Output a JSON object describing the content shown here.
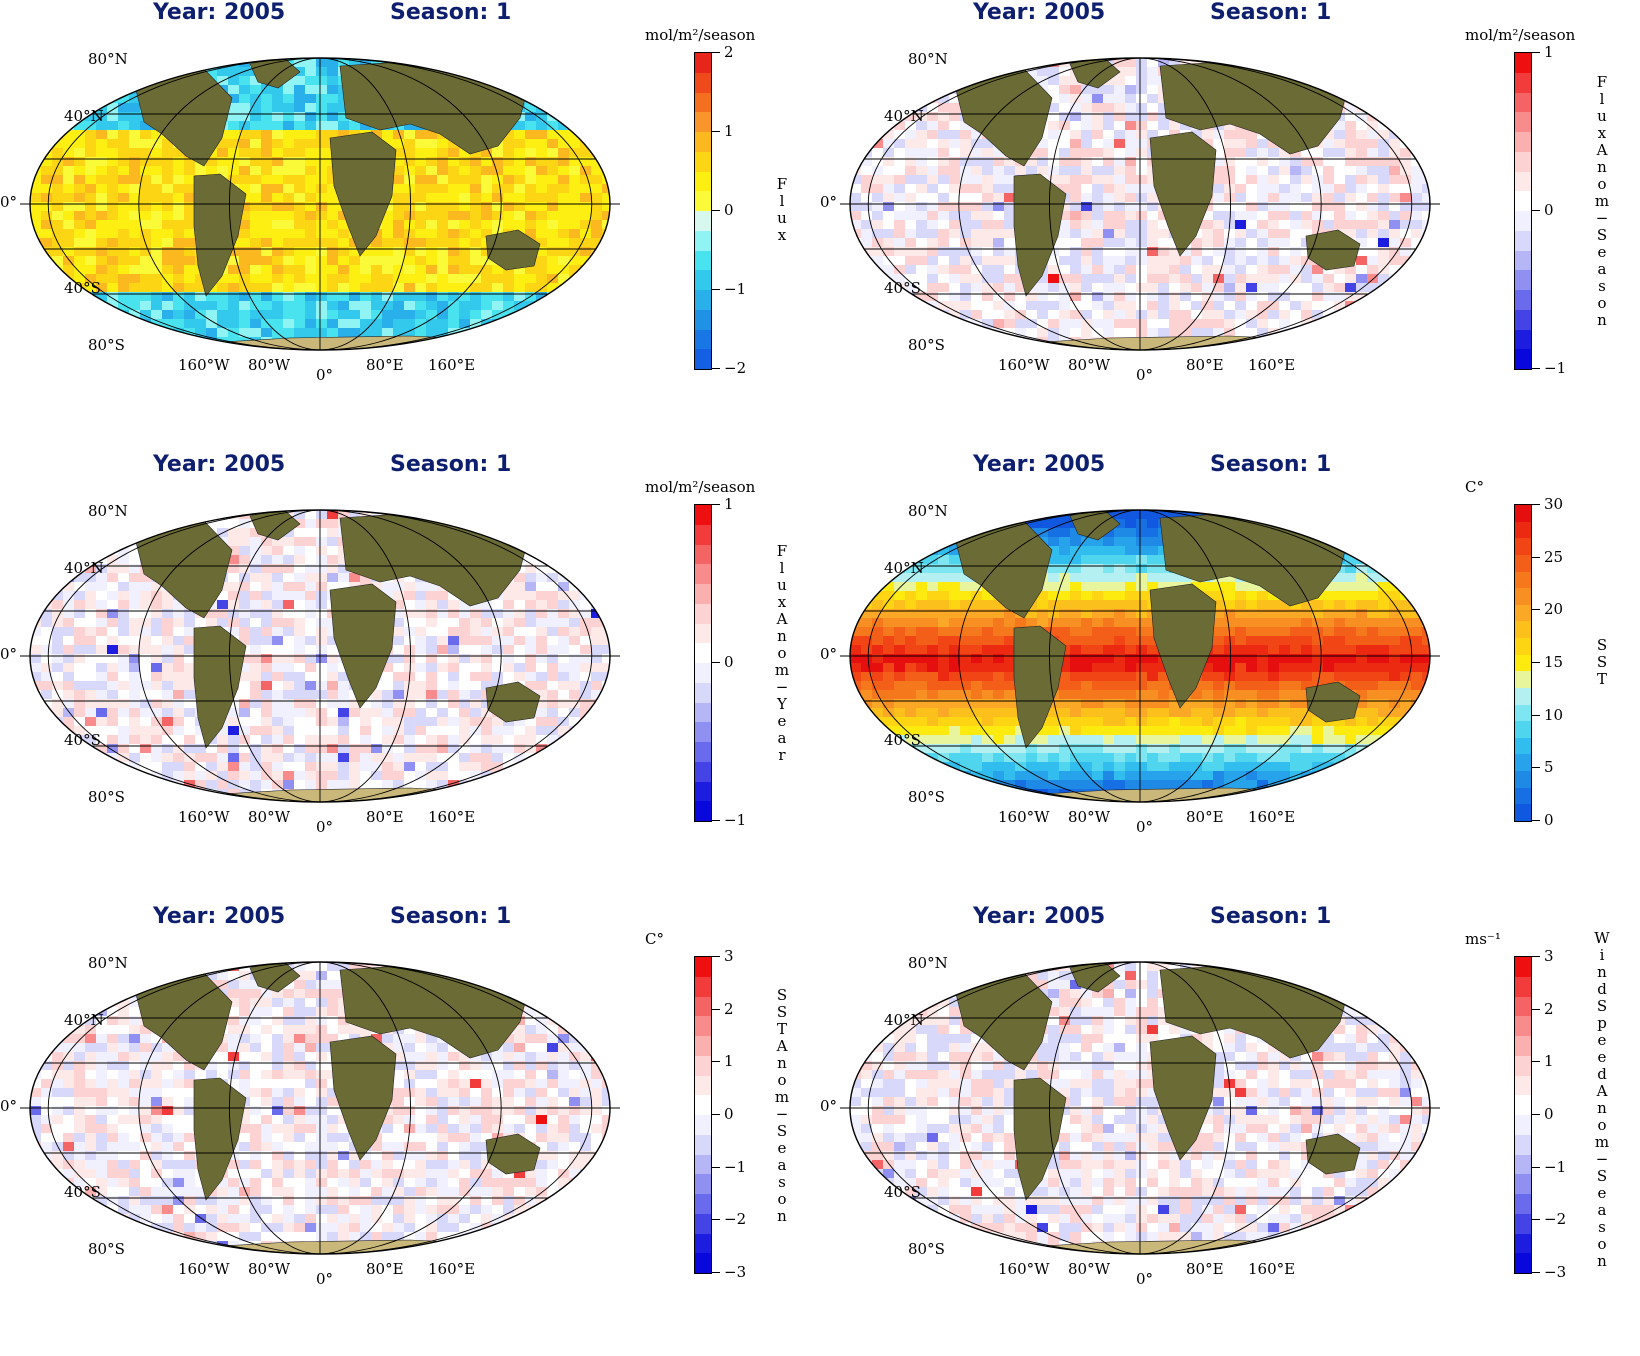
{
  "panels": [
    {
      "title_year": "Year: 2005",
      "title_season": "Season: 1",
      "units": "mol/m²/season",
      "varname": "Flux",
      "ticks": [
        "2",
        "1",
        "0",
        "−1",
        "−2"
      ],
      "colors": [
        "#e8251a",
        "#ef4a1c",
        "#f46f1f",
        "#f8952b",
        "#fbb81f",
        "#fcd515",
        "#fdef12",
        "#fafa39",
        "#d7f7ef",
        "#90f3f4",
        "#49e3ef",
        "#33c9ed",
        "#29b0ea",
        "#1f92e6",
        "#1877e4",
        "#1460e2"
      ],
      "ocean": "#c6f7f7",
      "ocean2": "#f3f25a"
    },
    {
      "title_year": "Year: 2005",
      "title_season": "Season: 1",
      "units": "mol/m²/season",
      "varname": "Flux Anom−Season",
      "ticks": [
        "1",
        "0",
        "−1"
      ],
      "colors": [
        "#ee0f10",
        "#f23b3b",
        "#f56464",
        "#f88b8b",
        "#fbb0b0",
        "#fdd2d2",
        "#fee9e9",
        "#ffffff",
        "#f0f0fe",
        "#d8d8fb",
        "#b6b6f7",
        "#9090f2",
        "#6a6aec",
        "#4343e6",
        "#1d1de0",
        "#0808dc"
      ],
      "ocean": "#f7f3fa",
      "ocean2": "#f9e0e6"
    },
    {
      "title_year": "Year: 2005",
      "title_season": "Season: 1",
      "units": "mol/m²/season",
      "varname": "Flux Anom−Year",
      "ticks": [
        "1",
        "0",
        "−1"
      ],
      "colors": [
        "#ee0f10",
        "#f23b3b",
        "#f56464",
        "#f88b8b",
        "#fbb0b0",
        "#fdd2d2",
        "#fee9e9",
        "#ffffff",
        "#f0f0fe",
        "#d8d8fb",
        "#b6b6f7",
        "#9090f2",
        "#6a6aec",
        "#4343e6",
        "#1d1de0",
        "#0808dc"
      ],
      "ocean": "#f5f3fb",
      "ocean2": "#d8dcf8"
    },
    {
      "title_year": "Year: 2005",
      "title_season": "Season: 1",
      "units": "C°",
      "varname": "SST",
      "ticks": [
        "30",
        "25",
        "20",
        "15",
        "10",
        "5",
        "0"
      ],
      "colors": [
        "#e60f0f",
        "#ec2a12",
        "#f14516",
        "#f35f18",
        "#f6781d",
        "#f88f22",
        "#fba826",
        "#fcc01d",
        "#fdd512",
        "#fdeb10",
        "#e8f59d",
        "#b4f0f2",
        "#7ee6f1",
        "#4fd5ee",
        "#31bded",
        "#26a3ea",
        "#1f8ae6",
        "#1670e3",
        "#1158e0"
      ],
      "ocean": "#f4681a",
      "ocean2": "#2fb8ec"
    },
    {
      "title_year": "Year: 2005",
      "title_season": "Season: 1",
      "units": "C°",
      "varname": "SST Anom−Season",
      "ticks": [
        "3",
        "2",
        "1",
        "0",
        "−1",
        "−2",
        "−3"
      ],
      "colors": [
        "#ee0f10",
        "#f23b3b",
        "#f56464",
        "#f88b8b",
        "#fbb0b0",
        "#fdd2d2",
        "#fee9e9",
        "#ffffff",
        "#f0f0fe",
        "#d8d8fb",
        "#b6b6f7",
        "#9090f2",
        "#6a6aec",
        "#4343e6",
        "#1d1de0",
        "#0808dc"
      ],
      "ocean": "#fbe8ee",
      "ocean2": "#dcdcf9"
    },
    {
      "title_year": "Year: 2005",
      "title_season": "Season: 1",
      "units": "ms⁻¹",
      "varname": "Wind Speed Anom−Season",
      "ticks": [
        "3",
        "2",
        "1",
        "0",
        "−1",
        "−2",
        "−3"
      ],
      "colors": [
        "#ee0f10",
        "#f23b3b",
        "#f56464",
        "#f88b8b",
        "#fbb0b0",
        "#fdd2d2",
        "#fee9e9",
        "#ffffff",
        "#f0f0fe",
        "#d8d8fb",
        "#b6b6f7",
        "#9090f2",
        "#6a6aec",
        "#4343e6",
        "#1d1de0",
        "#0808dc"
      ],
      "ocean": "#f8eaf1",
      "ocean2": "#d6d8fb"
    }
  ],
  "lat_labels": [
    "80°N",
    "40°N",
    "0°",
    "40°S",
    "80°S"
  ],
  "lon_labels": [
    "160°W",
    "80°W",
    "0°",
    "80°E",
    "160°E"
  ],
  "land_color": "#6b6b35"
}
